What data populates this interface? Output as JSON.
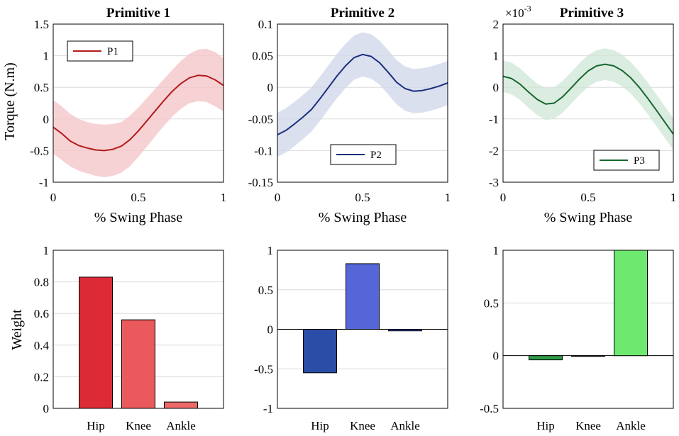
{
  "figure": {
    "shared_x_label": "% Swing Phase",
    "shared_torque_label": "Torque (N.m)",
    "shared_weight_label": "Weight"
  },
  "chart_data": [
    {
      "type": "line",
      "title": "Primitive 1",
      "xlabel": "% Swing Phase",
      "ylabel": "Torque (N.m)",
      "xlim": [
        0,
        1
      ],
      "ylim": [
        -1,
        1.5
      ],
      "xticks": [
        "0",
        "0.5",
        "1"
      ],
      "yticks": [
        "-1",
        "-0.5",
        "0",
        "0.5",
        "1",
        "1.5"
      ],
      "ytick_values": [
        -1,
        -0.5,
        0,
        0.5,
        1,
        1.5
      ],
      "grid": true,
      "legend": {
        "label": "P1",
        "position": "top-left"
      },
      "color": "#b31b1b",
      "band_color": "#f4c3c5",
      "series": [
        {
          "name": "P1",
          "x": [
            0,
            0.05,
            0.1,
            0.15,
            0.2,
            0.25,
            0.3,
            0.35,
            0.4,
            0.45,
            0.5,
            0.55,
            0.6,
            0.65,
            0.7,
            0.75,
            0.8,
            0.85,
            0.9,
            0.95,
            1.0
          ],
          "y": [
            -0.13,
            -0.23,
            -0.35,
            -0.42,
            -0.46,
            -0.49,
            -0.5,
            -0.48,
            -0.43,
            -0.33,
            -0.19,
            -0.03,
            0.13,
            0.29,
            0.44,
            0.56,
            0.65,
            0.69,
            0.68,
            0.62,
            0.53
          ],
          "upper": [
            0.3,
            0.2,
            0.08,
            0.0,
            -0.05,
            -0.08,
            -0.09,
            -0.08,
            -0.05,
            0.05,
            0.18,
            0.33,
            0.48,
            0.63,
            0.78,
            0.92,
            1.03,
            1.1,
            1.11,
            1.06,
            0.96
          ],
          "lower": [
            -0.55,
            -0.65,
            -0.75,
            -0.82,
            -0.86,
            -0.9,
            -0.92,
            -0.9,
            -0.85,
            -0.75,
            -0.6,
            -0.44,
            -0.27,
            -0.11,
            0.04,
            0.16,
            0.25,
            0.28,
            0.27,
            0.2,
            0.12
          ]
        }
      ]
    },
    {
      "type": "line",
      "title": "Primitive 2",
      "xlabel": "% Swing Phase",
      "ylabel": "",
      "xlim": [
        0,
        1
      ],
      "ylim": [
        -0.15,
        0.1
      ],
      "xticks": [
        "0",
        "0.5",
        "1"
      ],
      "yticks": [
        "-0.15",
        "-0.1",
        "-0.05",
        "0",
        "0.05",
        "0.1"
      ],
      "ytick_values": [
        -0.15,
        -0.1,
        -0.05,
        0,
        0.05,
        0.1
      ],
      "grid": true,
      "legend": {
        "label": "P2",
        "position": "bottom-right"
      },
      "color": "#1c2f7e",
      "band_color": "#cfd5ea",
      "series": [
        {
          "name": "P2",
          "x": [
            0,
            0.05,
            0.1,
            0.15,
            0.2,
            0.25,
            0.3,
            0.35,
            0.4,
            0.45,
            0.5,
            0.55,
            0.6,
            0.65,
            0.7,
            0.75,
            0.8,
            0.85,
            0.9,
            0.95,
            1.0
          ],
          "y": [
            -0.075,
            -0.068,
            -0.058,
            -0.047,
            -0.035,
            -0.018,
            0.0,
            0.018,
            0.034,
            0.047,
            0.052,
            0.049,
            0.039,
            0.024,
            0.008,
            -0.002,
            -0.006,
            -0.005,
            -0.002,
            0.002,
            0.007
          ],
          "upper": [
            -0.04,
            -0.033,
            -0.023,
            -0.012,
            0.0,
            0.017,
            0.035,
            0.053,
            0.069,
            0.082,
            0.087,
            0.084,
            0.074,
            0.059,
            0.043,
            0.033,
            0.029,
            0.03,
            0.033,
            0.037,
            0.042
          ],
          "lower": [
            -0.11,
            -0.103,
            -0.093,
            -0.082,
            -0.07,
            -0.053,
            -0.035,
            -0.017,
            -0.001,
            0.012,
            0.017,
            0.014,
            0.004,
            -0.011,
            -0.027,
            -0.037,
            -0.041,
            -0.04,
            -0.037,
            -0.033,
            -0.028
          ]
        }
      ]
    },
    {
      "type": "line",
      "title": "Primitive 3",
      "xlabel": "% Swing Phase",
      "ylabel": "",
      "scale_label": "×10",
      "scale_exponent": "-3",
      "xlim": [
        0,
        1
      ],
      "ylim": [
        -3,
        2
      ],
      "xticks": [
        "0",
        "0.5",
        "1"
      ],
      "yticks": [
        "-3",
        "-2",
        "-1",
        "0",
        "1",
        "2"
      ],
      "ytick_values": [
        -3,
        -2,
        -1,
        0,
        1,
        2
      ],
      "grid": true,
      "legend": {
        "label": "P3",
        "position": "bottom-right"
      },
      "color": "#17662f",
      "band_color": "#cfe5d6",
      "series": [
        {
          "name": "P3",
          "x": [
            0,
            0.05,
            0.1,
            0.15,
            0.2,
            0.25,
            0.3,
            0.35,
            0.4,
            0.45,
            0.5,
            0.55,
            0.6,
            0.65,
            0.7,
            0.75,
            0.8,
            0.85,
            0.9,
            0.95,
            1.0
          ],
          "y": [
            0.35,
            0.28,
            0.1,
            -0.15,
            -0.38,
            -0.53,
            -0.5,
            -0.3,
            -0.02,
            0.27,
            0.52,
            0.68,
            0.73,
            0.68,
            0.53,
            0.3,
            0.0,
            -0.35,
            -0.72,
            -1.1,
            -1.48
          ],
          "upper": [
            0.85,
            0.78,
            0.6,
            0.35,
            0.12,
            -0.03,
            0.0,
            0.2,
            0.48,
            0.77,
            1.02,
            1.18,
            1.23,
            1.18,
            1.03,
            0.8,
            0.5,
            0.15,
            -0.22,
            -0.6,
            -0.98
          ],
          "lower": [
            -0.15,
            -0.22,
            -0.4,
            -0.65,
            -0.88,
            -1.03,
            -1.0,
            -0.8,
            -0.52,
            -0.23,
            0.02,
            0.18,
            0.23,
            0.18,
            0.03,
            -0.2,
            -0.5,
            -0.85,
            -1.22,
            -1.6,
            -1.98
          ]
        }
      ]
    },
    {
      "type": "bar",
      "title": "",
      "xlabel": "",
      "ylabel": "Weight",
      "ylim": [
        0,
        1
      ],
      "yticks": [
        "0",
        "0.2",
        "0.4",
        "0.6",
        "0.8",
        "1"
      ],
      "ytick_values": [
        0,
        0.2,
        0.4,
        0.6,
        0.8,
        1
      ],
      "grid": true,
      "categories": [
        "Hip",
        "Knee",
        "Ankle"
      ],
      "values": [
        0.83,
        0.56,
        0.04
      ],
      "colors": [
        "#dc2a36",
        "#ea5a5c",
        "#ee6a6a"
      ]
    },
    {
      "type": "bar",
      "title": "",
      "xlabel": "",
      "ylabel": "",
      "ylim": [
        -1,
        1
      ],
      "yticks": [
        "-1",
        "-0.5",
        "0",
        "0.5",
        "1"
      ],
      "ytick_values": [
        -1,
        -0.5,
        0,
        0.5,
        1
      ],
      "grid": true,
      "categories": [
        "Hip",
        "Knee",
        "Ankle"
      ],
      "values": [
        -0.55,
        0.83,
        -0.02
      ],
      "colors": [
        "#2b4da8",
        "#5566d8",
        "#3e55c0"
      ]
    },
    {
      "type": "bar",
      "title": "",
      "xlabel": "",
      "ylabel": "",
      "ylim": [
        -0.5,
        1
      ],
      "yticks": [
        "-0.5",
        "0",
        "0.5",
        "1"
      ],
      "ytick_values": [
        -0.5,
        0,
        0.5,
        1
      ],
      "grid": true,
      "categories": [
        "Hip",
        "Knee",
        "Ankle"
      ],
      "values": [
        -0.04,
        -0.005,
        1.0
      ],
      "colors": [
        "#2f9a47",
        "#2f9a47",
        "#6fe86f"
      ]
    }
  ]
}
